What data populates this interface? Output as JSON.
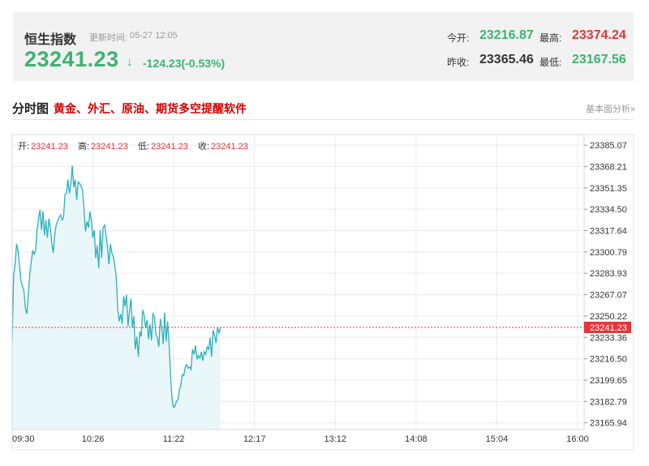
{
  "quote": {
    "name": "恒生指数",
    "update_label": "更新时间:",
    "update_time": "05-27 12:05",
    "price": "23241.23",
    "arrow": "↓",
    "change": "-124.23(-0.53%)"
  },
  "stats": {
    "open_label": "今开:",
    "open": "23216.87",
    "high_label": "最高:",
    "high": "23374.24",
    "prev_close_label": "昨收:",
    "prev_close": "23365.46",
    "low_label": "最低:",
    "low": "23167.56"
  },
  "section": {
    "title": "分时图",
    "promo_link": "黄金、外汇、原油、期货多空提醒软件",
    "fundamentals_link": "基本面分析»"
  },
  "colors": {
    "line": "#2ab0bc",
    "fill": "#eaf7fa",
    "current_price": "#e5343a",
    "down": "#3cb371",
    "up": "#e5343a"
  },
  "chart_data": {
    "type": "area",
    "info_bar": {
      "open_label": "开:",
      "open": "23241.23",
      "high_label": "高:",
      "high": "23241.23",
      "low_label": "低:",
      "low": "23241.23",
      "close_label": "收:",
      "close": "23241.23"
    },
    "x_ticks": [
      "09:30",
      "10:26",
      "11:22",
      "12:17",
      "13:12",
      "14:08",
      "15:04",
      "16:00"
    ],
    "y_ticks": [
      "23385.07",
      "23368.21",
      "23351.35",
      "23334.50",
      "23317.64",
      "23300.79",
      "23283.93",
      "23267.07",
      "23250.22",
      "23233.36",
      "23216.50",
      "23199.65",
      "23182.79",
      "23165.94"
    ],
    "current_price": "23241.23",
    "ylim": [
      23160.6,
      23393.5
    ],
    "x_minutes_range": [
      0,
      390
    ],
    "series": [
      {
        "values": [
          [
            0,
            23230
          ],
          [
            1,
            23282
          ],
          [
            2,
            23291
          ],
          [
            3,
            23307
          ],
          [
            4,
            23302
          ],
          [
            6,
            23278
          ],
          [
            8,
            23270
          ],
          [
            9,
            23256
          ],
          [
            10,
            23252
          ],
          [
            11,
            23267
          ],
          [
            12,
            23284
          ],
          [
            14,
            23302
          ],
          [
            15,
            23299
          ],
          [
            16,
            23302
          ],
          [
            17,
            23318
          ],
          [
            18,
            23327
          ],
          [
            19,
            23334
          ],
          [
            20,
            23318
          ],
          [
            21,
            23333
          ],
          [
            22,
            23314
          ],
          [
            23,
            23326
          ],
          [
            24,
            23312
          ],
          [
            25,
            23327
          ],
          [
            26,
            23320
          ],
          [
            27,
            23308
          ],
          [
            28,
            23300
          ],
          [
            29,
            23314
          ],
          [
            30,
            23322
          ],
          [
            32,
            23328
          ],
          [
            33,
            23330
          ],
          [
            34,
            23326
          ],
          [
            35,
            23328
          ],
          [
            36,
            23346
          ],
          [
            37,
            23347
          ],
          [
            38,
            23358
          ],
          [
            39,
            23347
          ],
          [
            40,
            23355
          ],
          [
            41,
            23369
          ],
          [
            42,
            23352
          ],
          [
            43,
            23358
          ],
          [
            44,
            23342
          ],
          [
            45,
            23356
          ],
          [
            46,
            23355
          ],
          [
            48,
            23350
          ],
          [
            49,
            23334
          ],
          [
            50,
            23317
          ],
          [
            51,
            23325
          ],
          [
            52,
            23320
          ],
          [
            53,
            23333
          ],
          [
            54,
            23326
          ],
          [
            55,
            23312
          ],
          [
            56,
            23318
          ],
          [
            57,
            23296
          ],
          [
            58,
            23306
          ],
          [
            59,
            23288
          ],
          [
            60,
            23318
          ],
          [
            61,
            23296
          ],
          [
            62,
            23320
          ],
          [
            63,
            23322
          ],
          [
            64,
            23314
          ],
          [
            65,
            23305
          ],
          [
            66,
            23291
          ],
          [
            67,
            23307
          ],
          [
            68,
            23300
          ],
          [
            69,
            23297
          ],
          [
            70,
            23290
          ],
          [
            71,
            23281
          ],
          [
            72,
            23255
          ],
          [
            73,
            23246
          ],
          [
            74,
            23252
          ],
          [
            75,
            23244
          ],
          [
            76,
            23266
          ],
          [
            77,
            23258
          ],
          [
            78,
            23267
          ],
          [
            79,
            23242
          ],
          [
            80,
            23254
          ],
          [
            81,
            23264
          ],
          [
            82,
            23241
          ],
          [
            83,
            23250
          ],
          [
            84,
            23224
          ],
          [
            85,
            23234
          ],
          [
            86,
            23218
          ],
          [
            87,
            23238
          ],
          [
            88,
            23234
          ],
          [
            89,
            23255
          ],
          [
            90,
            23251
          ],
          [
            91,
            23241
          ],
          [
            92,
            23247
          ],
          [
            93,
            23232
          ],
          [
            94,
            23244
          ],
          [
            95,
            23231
          ],
          [
            96,
            23252
          ],
          [
            97,
            23250
          ],
          [
            98,
            23236
          ],
          [
            99,
            23233
          ],
          [
            100,
            23226
          ],
          [
            101,
            23248
          ],
          [
            102,
            23241
          ],
          [
            103,
            23228
          ],
          [
            104,
            23253
          ],
          [
            105,
            23230
          ],
          [
            106,
            23246
          ],
          [
            107,
            23228
          ],
          [
            108,
            23204
          ],
          [
            109,
            23185
          ],
          [
            110,
            23178
          ],
          [
            111,
            23179
          ],
          [
            112,
            23183
          ],
          [
            113,
            23184
          ],
          [
            114,
            23192
          ],
          [
            115,
            23196
          ],
          [
            116,
            23204
          ],
          [
            117,
            23203
          ],
          [
            118,
            23210
          ],
          [
            119,
            23212
          ],
          [
            120,
            23209
          ],
          [
            121,
            23210
          ],
          [
            122,
            23208
          ],
          [
            123,
            23224
          ],
          [
            124,
            23220
          ],
          [
            125,
            23227
          ],
          [
            126,
            23216
          ],
          [
            127,
            23219
          ],
          [
            128,
            23217
          ],
          [
            129,
            23222
          ],
          [
            130,
            23215
          ],
          [
            131,
            23222
          ],
          [
            132,
            23220
          ],
          [
            133,
            23226
          ],
          [
            134,
            23224
          ],
          [
            135,
            23233
          ],
          [
            136,
            23218
          ],
          [
            137,
            23239
          ],
          [
            138,
            23235
          ],
          [
            139,
            23229
          ],
          [
            140,
            23241
          ],
          [
            141,
            23237
          ],
          [
            142,
            23241
          ]
        ]
      }
    ]
  }
}
